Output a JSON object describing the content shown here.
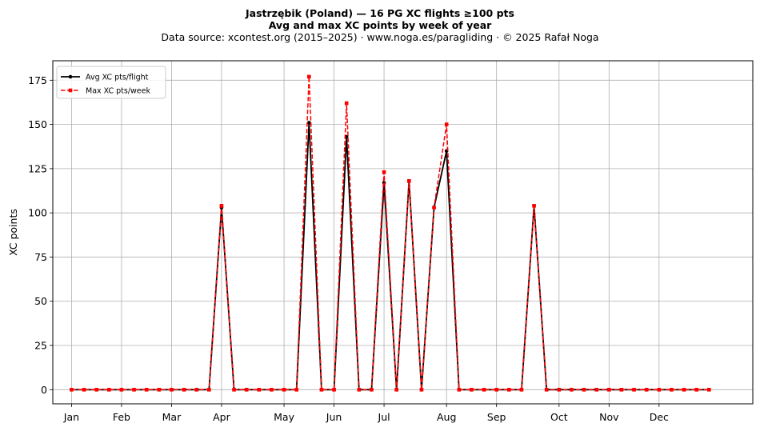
{
  "chart_data": {
    "type": "line",
    "title": "Jastrzębik (Poland)  —  16 PG XC flights ≥100 pts",
    "subtitle": "Avg and max XC points by week of year",
    "source": "Data source: xcontest.org (2015–2025)  ·  www.noga.es/paragliding  ·  © 2025 Rafał Noga",
    "xlabel": "",
    "ylabel": "XC points",
    "ylim": [
      -8,
      186
    ],
    "xlim": [
      -1.5,
      54.5
    ],
    "yticks": [
      0,
      25,
      50,
      75,
      100,
      125,
      150,
      175
    ],
    "xticks": [
      {
        "label": "Jan",
        "week": 0
      },
      {
        "label": "Feb",
        "week": 4
      },
      {
        "label": "Mar",
        "week": 8
      },
      {
        "label": "Apr",
        "week": 12
      },
      {
        "label": "May",
        "week": 17
      },
      {
        "label": "Jun",
        "week": 21
      },
      {
        "label": "Jul",
        "week": 25
      },
      {
        "label": "Aug",
        "week": 30
      },
      {
        "label": "Sep",
        "week": 34
      },
      {
        "label": "Oct",
        "week": 39
      },
      {
        "label": "Nov",
        "week": 43
      },
      {
        "label": "Dec",
        "week": 47
      }
    ],
    "grid": true,
    "legend": "top-left",
    "x": [
      0,
      1,
      2,
      3,
      4,
      5,
      6,
      7,
      8,
      9,
      10,
      11,
      12,
      13,
      14,
      15,
      16,
      17,
      18,
      19,
      20,
      21,
      22,
      23,
      24,
      25,
      26,
      27,
      28,
      29,
      30,
      31,
      32,
      33,
      34,
      35,
      36,
      37,
      38,
      39,
      40,
      41,
      42,
      43,
      44,
      45,
      46,
      47,
      48,
      49,
      50,
      51
    ],
    "series": [
      {
        "name": "Avg XC pts/flight",
        "color": "#000000",
        "style": "solid",
        "marker": "circle",
        "values": [
          0,
          0,
          0,
          0,
          0,
          0,
          0,
          0,
          0,
          0,
          0,
          0,
          103,
          0,
          0,
          0,
          0,
          0,
          0,
          151,
          0,
          0,
          143,
          0,
          0,
          117,
          0,
          118,
          0,
          103,
          135,
          0,
          0,
          0,
          0,
          0,
          0,
          104,
          0,
          0,
          0,
          0,
          0,
          0,
          0,
          0,
          0,
          0,
          0,
          0,
          0,
          0
        ]
      },
      {
        "name": "Max XC pts/week",
        "color": "#ff0000",
        "style": "dashed",
        "marker": "square",
        "values": [
          0,
          0,
          0,
          0,
          0,
          0,
          0,
          0,
          0,
          0,
          0,
          0,
          104,
          0,
          0,
          0,
          0,
          0,
          0,
          177,
          0,
          0,
          162,
          0,
          0,
          123,
          0,
          118,
          0,
          103,
          150,
          0,
          0,
          0,
          0,
          0,
          0,
          104,
          0,
          0,
          0,
          0,
          0,
          0,
          0,
          0,
          0,
          0,
          0,
          0,
          0,
          0
        ]
      }
    ]
  }
}
